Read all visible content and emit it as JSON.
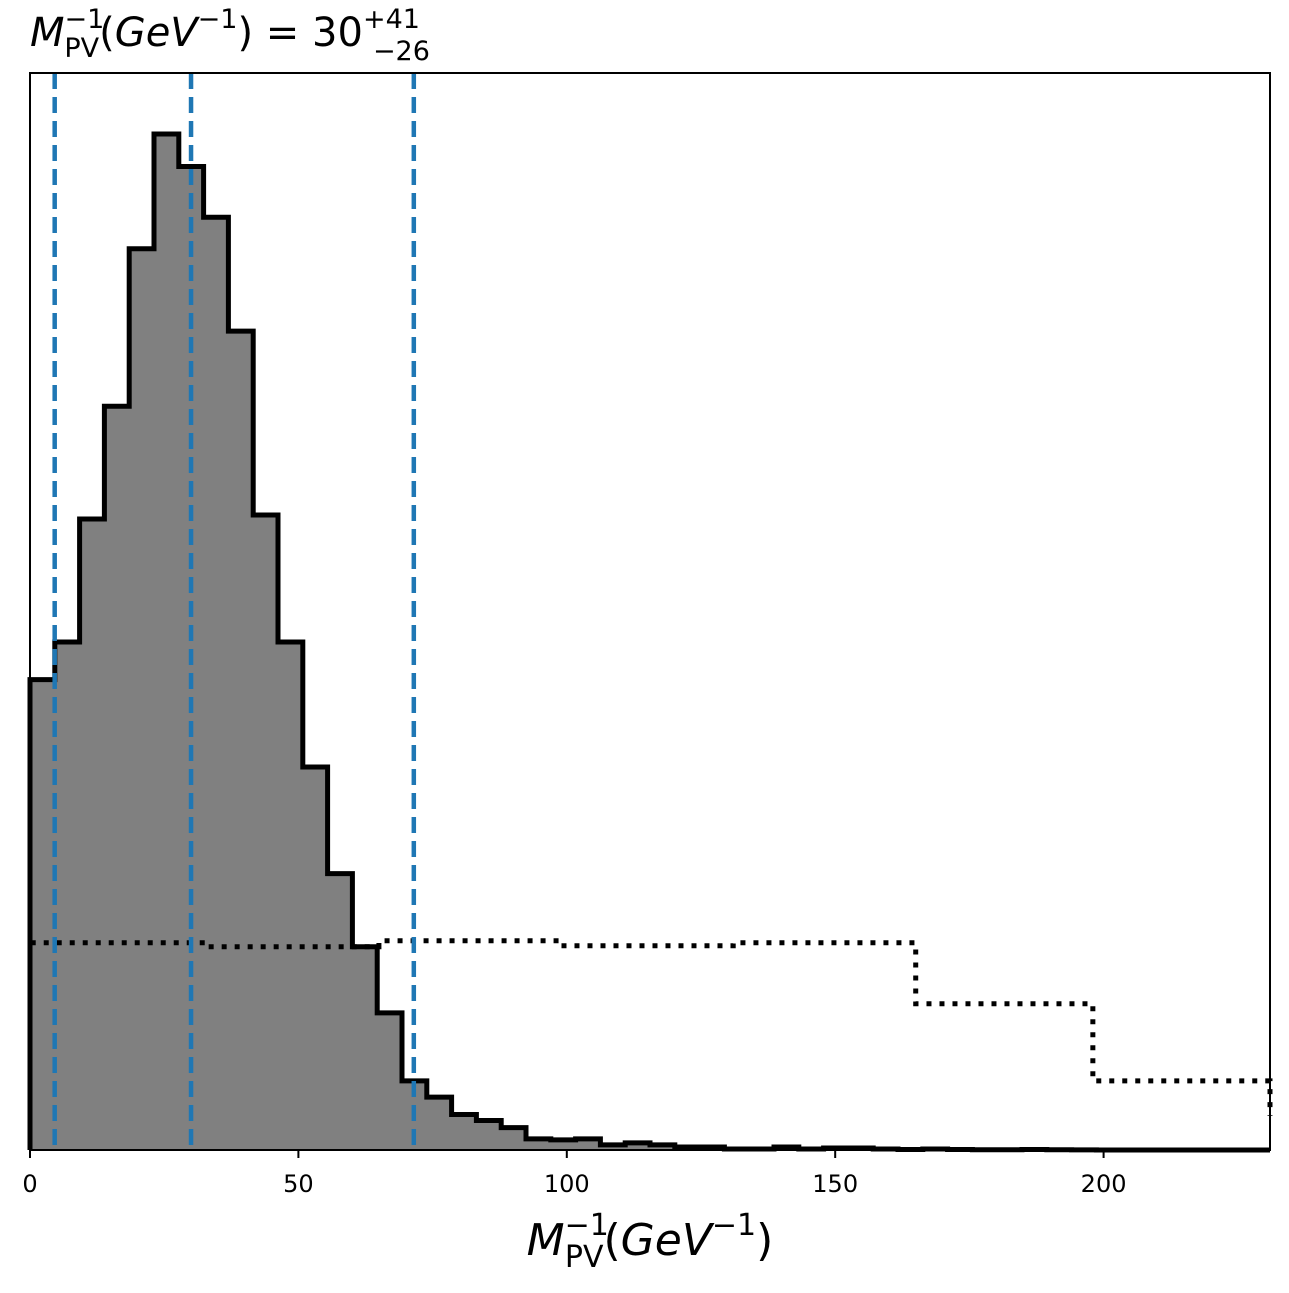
{
  "chart_data": {
    "type": "histogram",
    "title": {
      "symbol": "M",
      "symbol_sup": "−1",
      "symbol_sub": "PV",
      "unit_open": "(",
      "unit": "GeV",
      "unit_sup": "−1",
      "unit_close": ")",
      "equals": " = ",
      "value": "30",
      "err_plus": "+41",
      "err_minus": "−26"
    },
    "xlabel": {
      "symbol": "M",
      "symbol_sup": "−1",
      "symbol_sub": "PV",
      "unit_open": "(",
      "unit": "GeV",
      "unit_sup": "−1",
      "unit_close": ")"
    },
    "xlim": [
      0,
      231
    ],
    "ylim": [
      0,
      1.06
    ],
    "xticks": [
      {
        "value": 0,
        "label": "0"
      },
      {
        "value": 50,
        "label": "50"
      },
      {
        "value": 100,
        "label": "100"
      },
      {
        "value": 150,
        "label": "150"
      },
      {
        "value": 200,
        "label": "200"
      }
    ],
    "grid": false,
    "posterior": {
      "bin_width": 4.62,
      "fill_color": "#808080",
      "edge_color": "#000000",
      "values": [
        0.463,
        0.5,
        0.621,
        0.732,
        0.887,
        1.0,
        0.968,
        0.918,
        0.806,
        0.625,
        0.5,
        0.377,
        0.272,
        0.2,
        0.135,
        0.068,
        0.052,
        0.035,
        0.029,
        0.022,
        0.011,
        0.01,
        0.011,
        0.005,
        0.007,
        0.005,
        0.003,
        0.003,
        0.001,
        0.001,
        0.003,
        0.001,
        0.002,
        0.002,
        0.001,
        0.0005,
        0.001,
        0.0005,
        0.0002,
        0.0002,
        0.0005,
        0.0002,
        0.0001,
        0.0,
        0.0,
        0.0,
        0.0,
        0.0,
        0.0,
        0.0
      ]
    },
    "prior": {
      "line_style": "dotted",
      "edge_color": "#000000",
      "edges": [
        0,
        33,
        65,
        98,
        131,
        165,
        198,
        231
      ],
      "values": [
        0.204,
        0.2,
        0.206,
        0.201,
        0.204,
        0.144,
        0.068
      ]
    },
    "quantile_lines": {
      "color": "#1f77b4",
      "line_style": "dashed",
      "values": [
        4.6,
        30,
        71.5
      ]
    }
  }
}
